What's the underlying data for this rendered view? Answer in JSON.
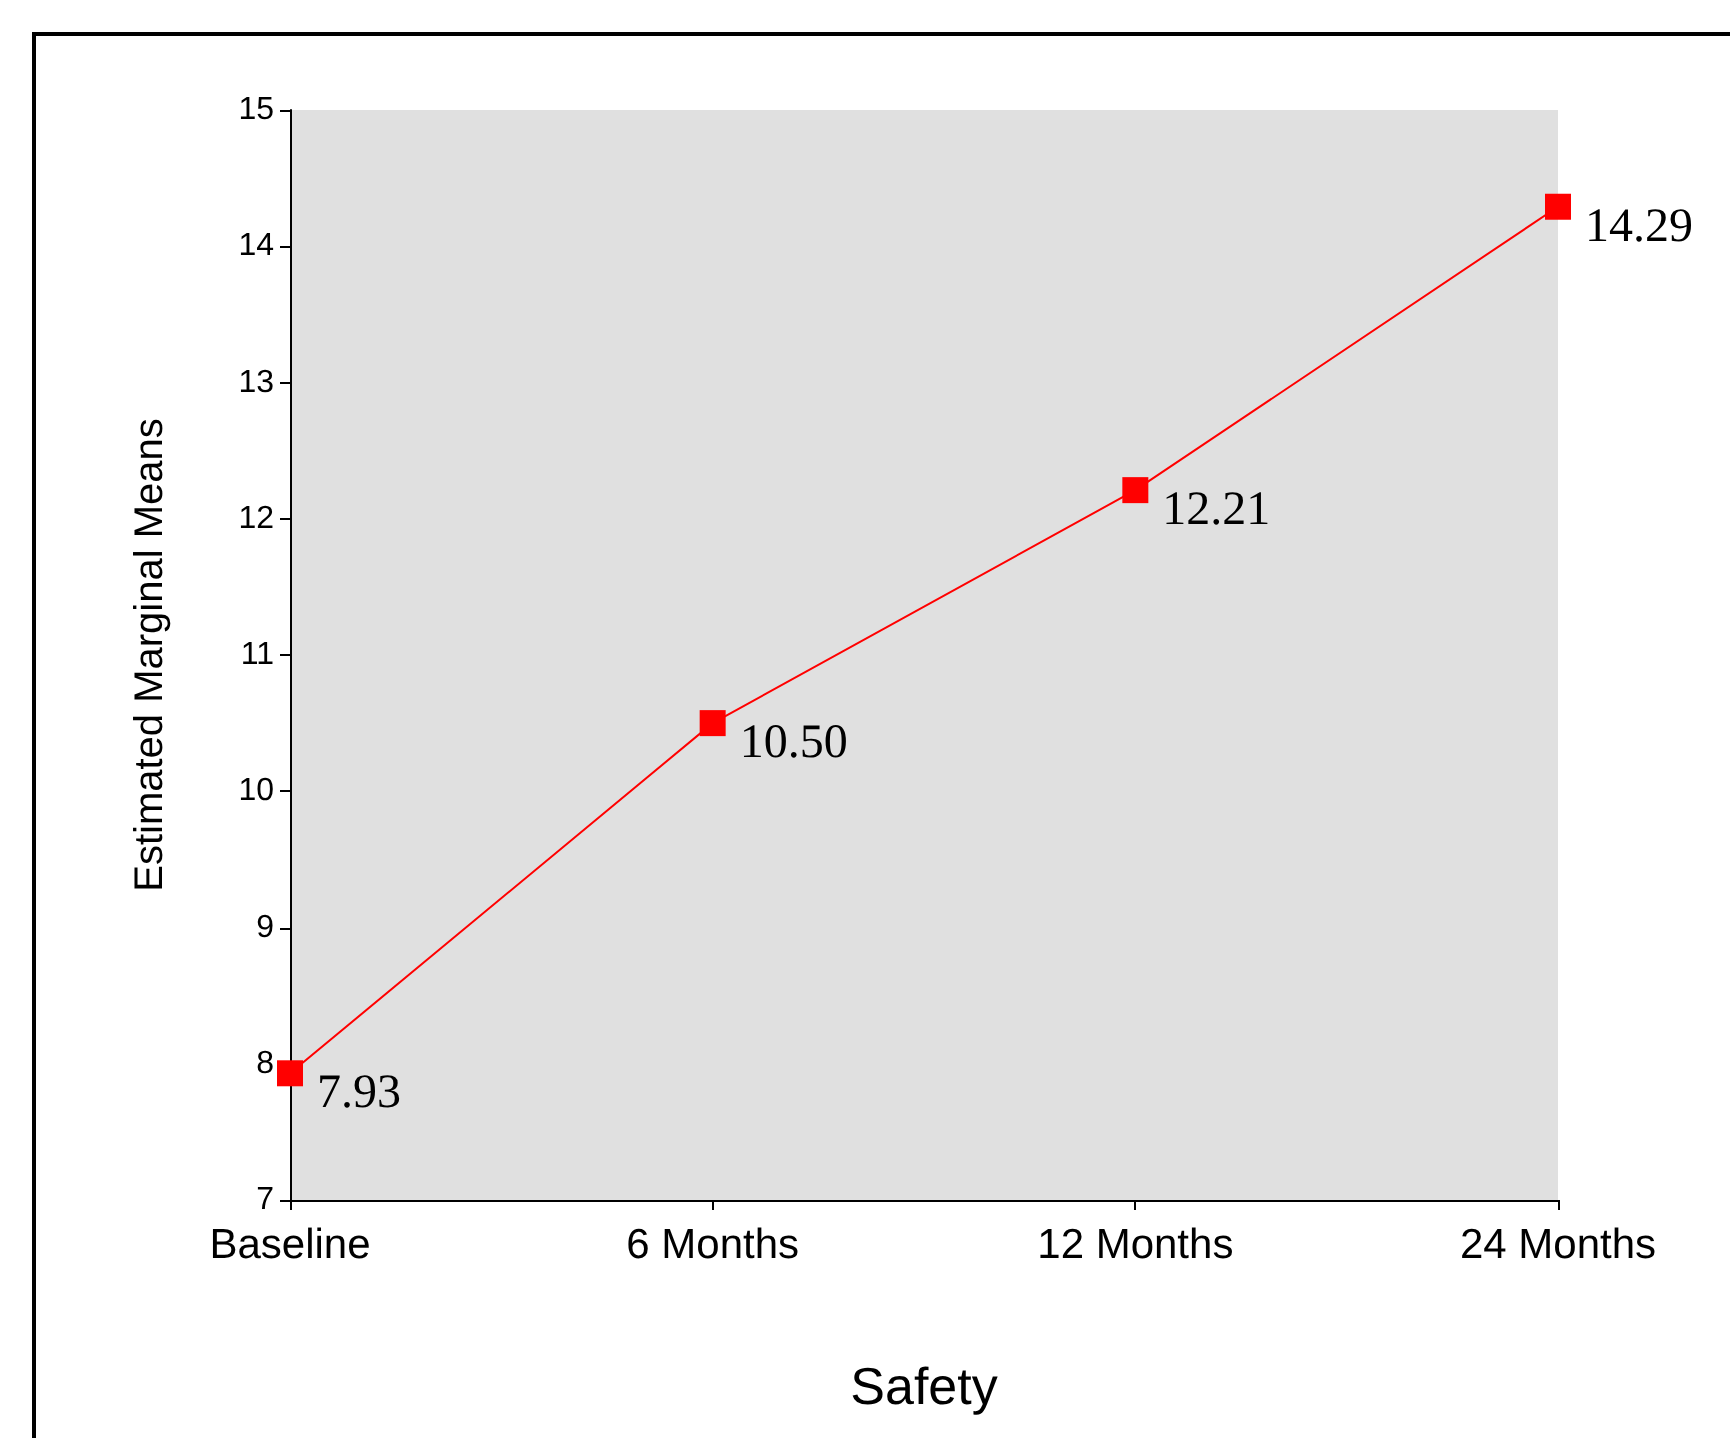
{
  "chart_data": {
    "type": "line",
    "xlabel": "Safety",
    "ylabel": "Estimated Marginal Means",
    "categories": [
      "Baseline",
      "6 Months",
      "12 Months",
      "24 Months"
    ],
    "series": [
      {
        "color": "#ff0000",
        "values": [
          7.93,
          10.5,
          12.21,
          14.29
        ],
        "value_labels": [
          "7.93",
          "10.50",
          "12.21",
          "14.29"
        ]
      }
    ],
    "ylim": [
      7,
      15
    ],
    "yticks": [
      7,
      8,
      9,
      10,
      11,
      12,
      13,
      14,
      15
    ],
    "grid": false,
    "marker": "square",
    "line_style": "solid"
  }
}
